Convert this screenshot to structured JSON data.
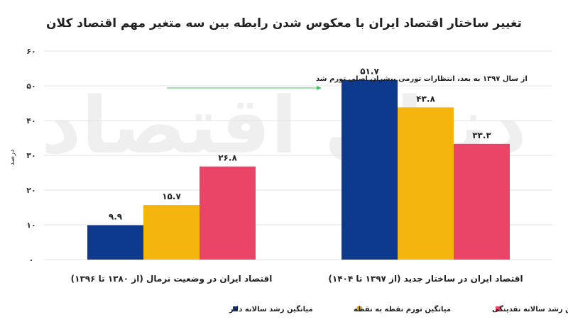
{
  "chart_data": {
    "type": "bar",
    "title": "تغییر ساختار اقتصاد ایران با معکوس شدن رابطه بین سه متغیر مهم اقتصاد کلان",
    "ylabel": "درصد",
    "xlabel": "",
    "ylim": [
      0,
      60
    ],
    "yticks": [
      0,
      10,
      20,
      30,
      40,
      50,
      60
    ],
    "ytick_labels": [
      "۰",
      "۱۰",
      "۲۰",
      "۳۰",
      "۴۰",
      "۵۰",
      "۶۰"
    ],
    "categories": [
      "اقتصاد ایران در وضعیت نرمال (از ۱۳۸۰ تا ۱۳۹۶)",
      "اقتصاد ایران در ساختار جدید (از ۱۳۹۷ تا ۱۴۰۴)"
    ],
    "series": [
      {
        "name": "میانگین رشد سالانه دلار",
        "color": "#0d3a8c",
        "values": [
          9.9,
          51.7
        ],
        "labels": [
          "۹.۹",
          "۵۱.۷"
        ]
      },
      {
        "name": "میانگین تورم نقطه به نقطه",
        "color": "#f5b50f",
        "values": [
          15.7,
          43.8
        ],
        "labels": [
          "۱۵.۷",
          "۴۳.۸"
        ]
      },
      {
        "name": "میانگین رشد سالانه نقدینگی",
        "color": "#ea4566",
        "values": [
          26.8,
          33.3
        ],
        "labels": [
          "۲۶.۸",
          "۳۳.۳"
        ]
      }
    ],
    "annotation": "از سال ۱۳۹۷ به بعد، انتظارات تورمی پیشران اصلی تورم شد",
    "annotation_color": "#44c265",
    "watermark": "دنیای اقتصاد",
    "grid": true,
    "legend_position": "bottom"
  }
}
